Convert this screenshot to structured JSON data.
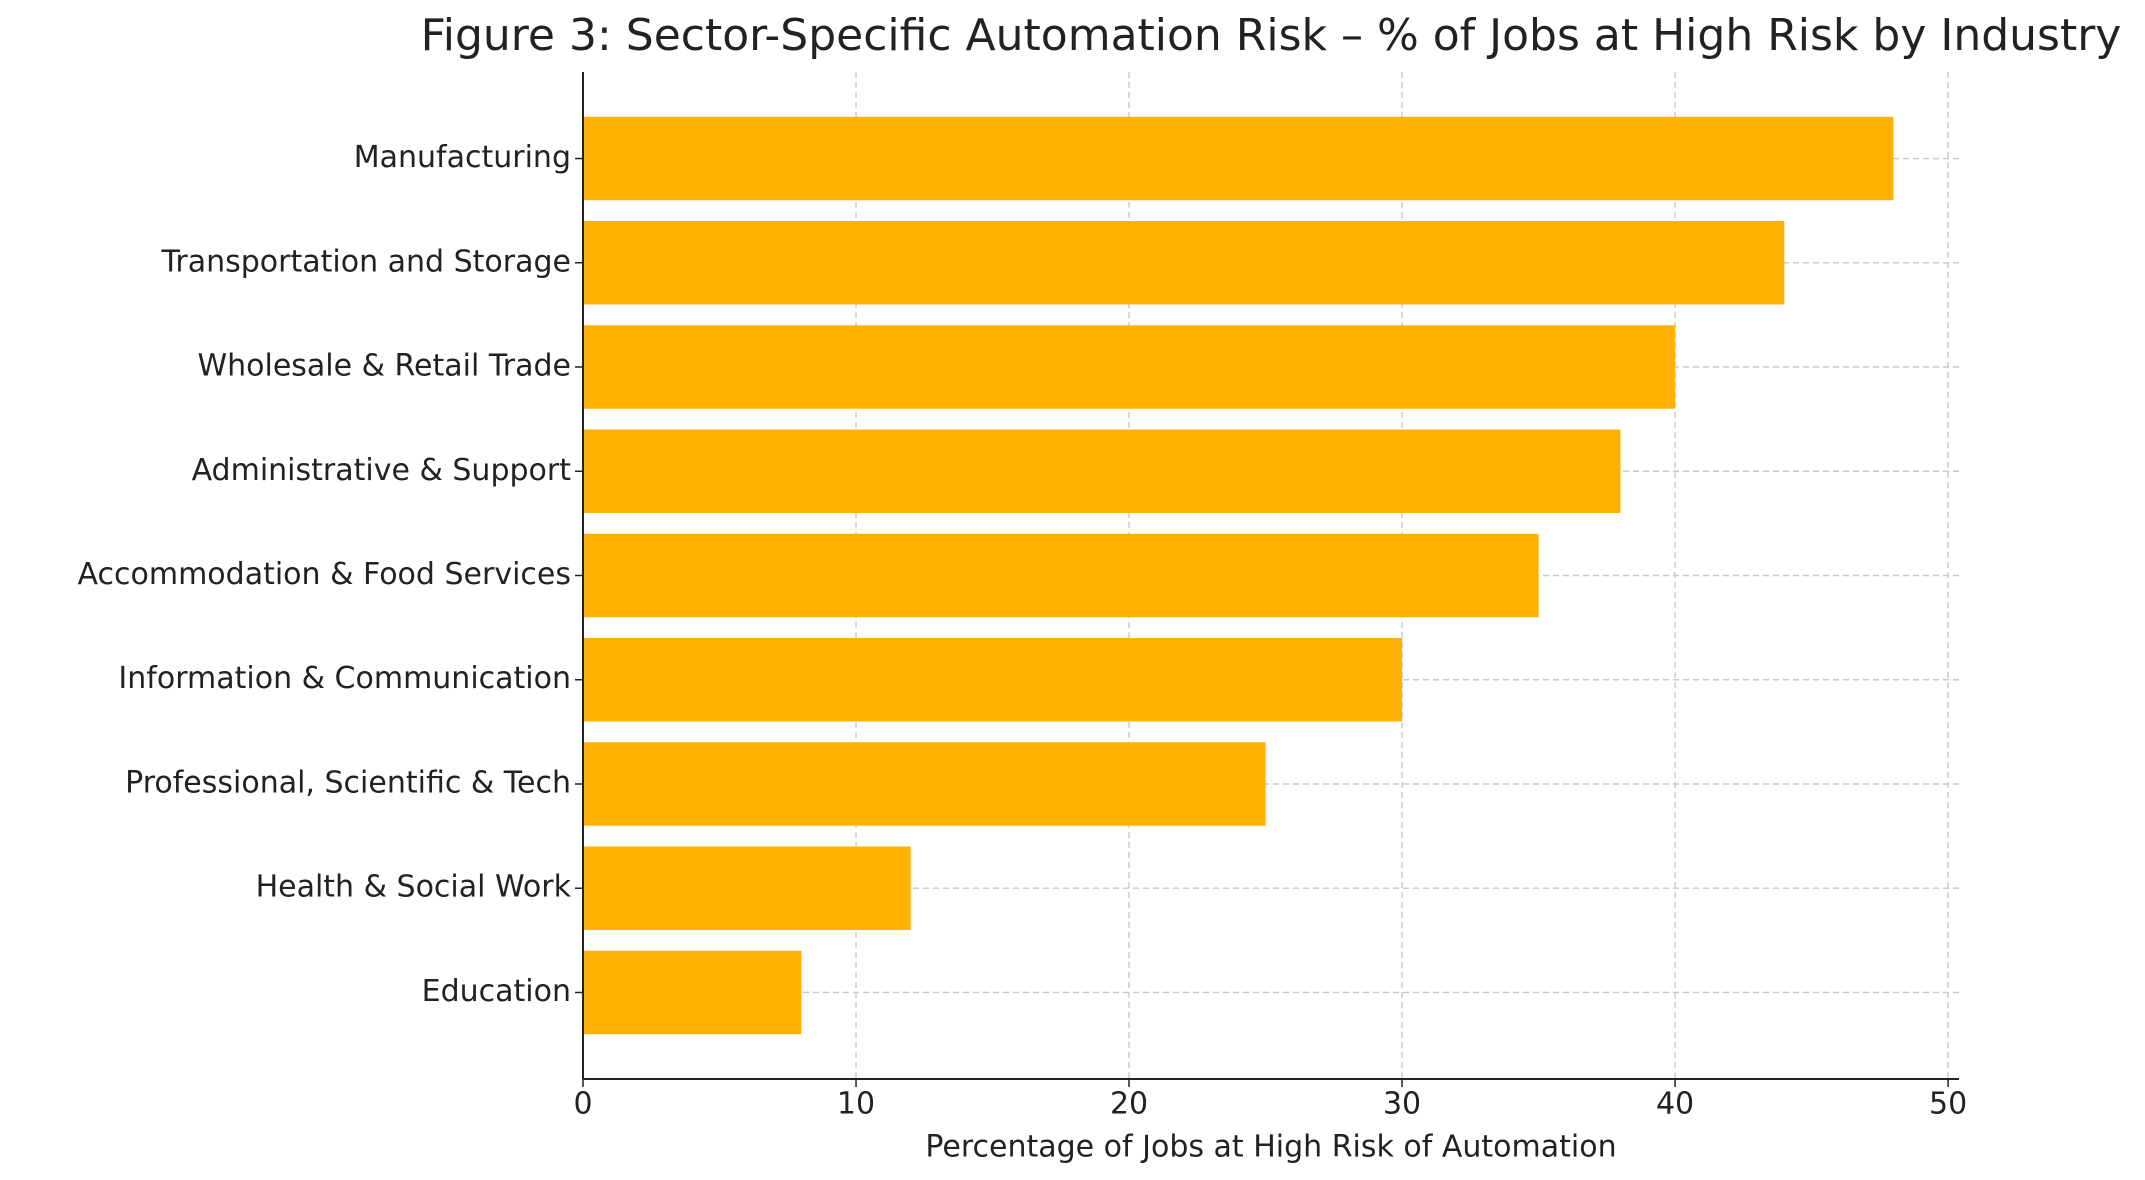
{
  "chart_data": {
    "type": "barh",
    "title": "Figure 3: Sector-Specific Automation Risk – % of Jobs at High Risk by Industry",
    "x_label": "Percentage of Jobs at High Risk of Automation",
    "categories": [
      "Manufacturing",
      "Transportation and Storage",
      "Wholesale & Retail Trade",
      "Administrative & Support",
      "Accommodation & Food Services",
      "Information & Communication",
      "Professional, Scientific & Tech",
      "Health & Social Work",
      "Education"
    ],
    "values": [
      48,
      44,
      40,
      38,
      35,
      30,
      25,
      12,
      8
    ],
    "color": "#ffb000",
    "xlim": [
      0,
      50.4
    ],
    "xticks": [
      0,
      10,
      20,
      30,
      40,
      50
    ],
    "grid": true
  }
}
